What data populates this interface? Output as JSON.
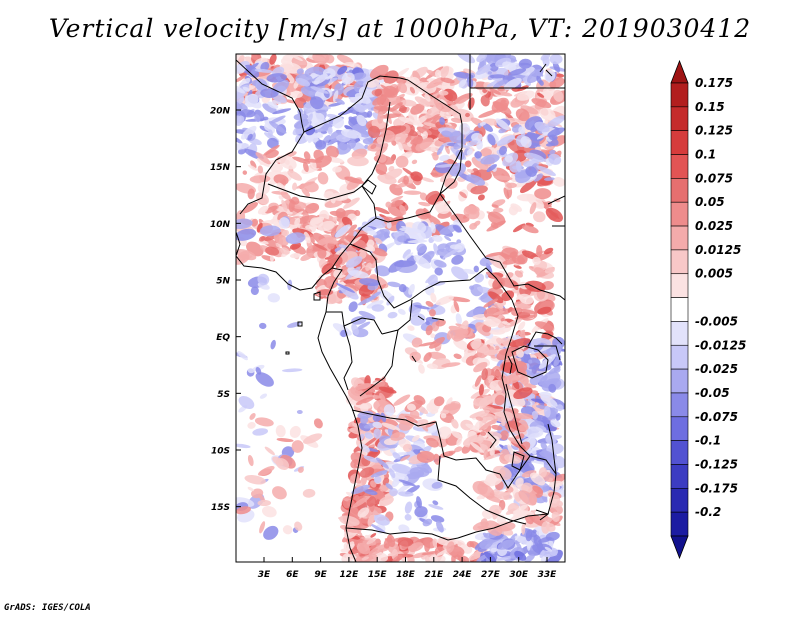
{
  "title": "Vertical velocity [m/s] at 1000hPa, VT: 2019030412",
  "credit": "GrADS: IGES/COLA",
  "chart_data": {
    "type": "heatmap",
    "variable": "Vertical velocity",
    "units": "m/s",
    "level": "1000hPa",
    "valid_time": "2019030412",
    "lon_range": [
      0,
      35
    ],
    "lat_range": [
      -20,
      25
    ],
    "y_ticks": [
      {
        "lat": 20,
        "label": "20N"
      },
      {
        "lat": 15,
        "label": "15N"
      },
      {
        "lat": 10,
        "label": "10N"
      },
      {
        "lat": 5,
        "label": "5N"
      },
      {
        "lat": 0,
        "label": "EQ"
      },
      {
        "lat": -5,
        "label": "5S"
      },
      {
        "lat": -10,
        "label": "10S"
      },
      {
        "lat": -15,
        "label": "15S"
      }
    ],
    "x_ticks": [
      {
        "lon": 3,
        "label": "3E"
      },
      {
        "lon": 6,
        "label": "6E"
      },
      {
        "lon": 9,
        "label": "9E"
      },
      {
        "lon": 12,
        "label": "12E"
      },
      {
        "lon": 15,
        "label": "15E"
      },
      {
        "lon": 18,
        "label": "18E"
      },
      {
        "lon": 21,
        "label": "21E"
      },
      {
        "lon": 24,
        "label": "24E"
      },
      {
        "lon": 27,
        "label": "27E"
      },
      {
        "lon": 30,
        "label": "30E"
      },
      {
        "lon": 33,
        "label": "33E"
      }
    ],
    "colorbar": [
      {
        "label": "0.175",
        "color": "#b21e1e"
      },
      {
        "label": "0.15",
        "color": "#c52b2b"
      },
      {
        "label": "0.125",
        "color": "#d63c3c"
      },
      {
        "label": "0.1",
        "color": "#e25454"
      },
      {
        "label": "0.075",
        "color": "#e66f6f"
      },
      {
        "label": "0.05",
        "color": "#ee8c8c"
      },
      {
        "label": "0.025",
        "color": "#f4abab"
      },
      {
        "label": "0.0125",
        "color": "#f8c8c8"
      },
      {
        "label": "0.005",
        "color": "#fbe2e2"
      },
      {
        "label": "",
        "color": "#ffffff"
      },
      {
        "label": "-0.005",
        "color": "#e2e2fb"
      },
      {
        "label": "-0.0125",
        "color": "#c8c8f8"
      },
      {
        "label": "-0.025",
        "color": "#a9a9f0"
      },
      {
        "label": "-0.05",
        "color": "#8a8ae8"
      },
      {
        "label": "-0.075",
        "color": "#6e6ee0"
      },
      {
        "label": "-0.1",
        "color": "#5252d2"
      },
      {
        "label": "-0.125",
        "color": "#3c3cc2"
      },
      {
        "label": "-0.175",
        "color": "#2a2ab2"
      },
      {
        "label": "-0.2",
        "color": "#1c1ca2"
      }
    ],
    "upper_triangle_color": "#9e1414",
    "lower_triangle_color": "#12128e",
    "coastline_color": "#000000",
    "border_color": "#000000"
  }
}
